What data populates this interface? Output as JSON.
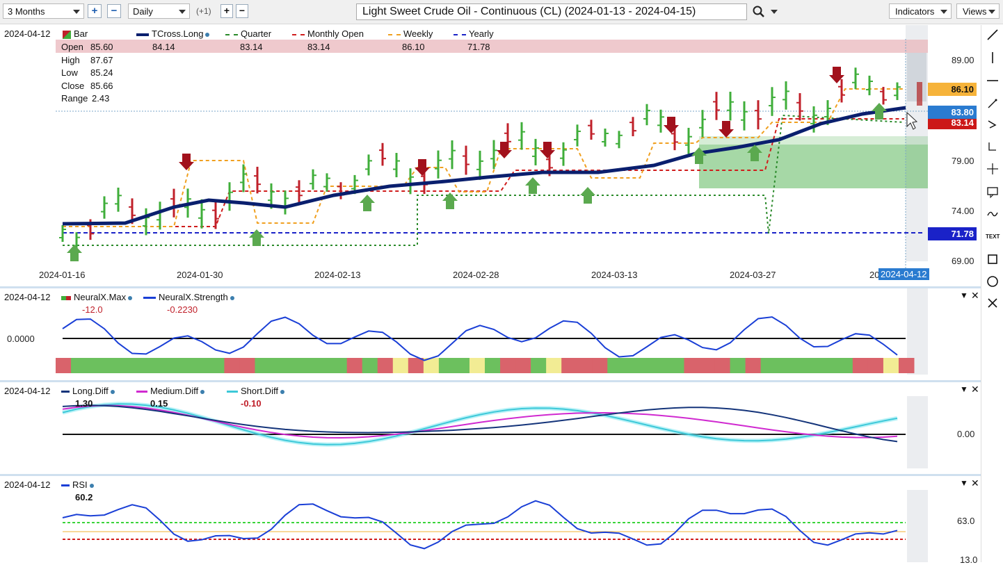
{
  "toolbar": {
    "range": "3 Months",
    "interval": "Daily",
    "offset": "(+1)",
    "title": "Light Sweet Crude Oil - Continuous (CL) (2024-01-13 - 2024-04-15)",
    "indicators": "Indicators",
    "views": "Views"
  },
  "colors": {
    "up_bar": "#3fae3a",
    "down_bar": "#c0202a",
    "tcross": "#0a1f6e",
    "quarter": "#2a8a2a",
    "monthly": "#d01c1c",
    "weekly": "#f0a020",
    "yearly": "#1a22c8"
  },
  "main": {
    "date": "2024-04-12",
    "legend": {
      "bar": "Bar",
      "tcross": "TCross.Long",
      "quarter": "Quarter",
      "monthly": "Monthly Open",
      "weekly": "Weekly",
      "yearly": "Yearly",
      "tcross_val": "84.14",
      "quarter_val": "83.14",
      "monthly_val": "83.14",
      "weekly_val": "86.10",
      "yearly_val": "71.78"
    },
    "ohlc": {
      "open_label": "Open",
      "open": "85.60",
      "high_label": "High",
      "high": "87.67",
      "low_label": "Low",
      "low": "85.24",
      "close_label": "Close",
      "close": "85.66",
      "range_label": "Range",
      "range": "2.43"
    },
    "y_ticks": [
      "89.00",
      "79.00",
      "74.00",
      "69.00"
    ],
    "x_ticks": [
      "2024-01-16",
      "2024-01-30",
      "2024-02-13",
      "2024-02-28",
      "2024-03-13",
      "2024-03-27",
      "20"
    ],
    "cursor_date": "2024-04-12",
    "price_tags": {
      "weekly": "86.10",
      "last": "83.80",
      "monthly": "83.14",
      "yearly": "71.78"
    }
  },
  "neural": {
    "date": "2024-04-12",
    "max_name": "NeuralX.Max",
    "max_val": "-12.0",
    "strength_name": "NeuralX.Strength",
    "strength_val": "-0.2230",
    "zero": "0.0000"
  },
  "diff": {
    "date": "2024-04-12",
    "long_name": "Long.Diff",
    "long_val": "1.30",
    "medium_name": "Medium.Diff",
    "medium_val": "0.15",
    "short_name": "Short.Diff",
    "short_val": "-0.10",
    "zero": "0.00"
  },
  "rsi": {
    "date": "2024-04-12",
    "name": "RSI",
    "val": "60.2",
    "tick1": "63.0",
    "tick2": "13.0"
  }
}
